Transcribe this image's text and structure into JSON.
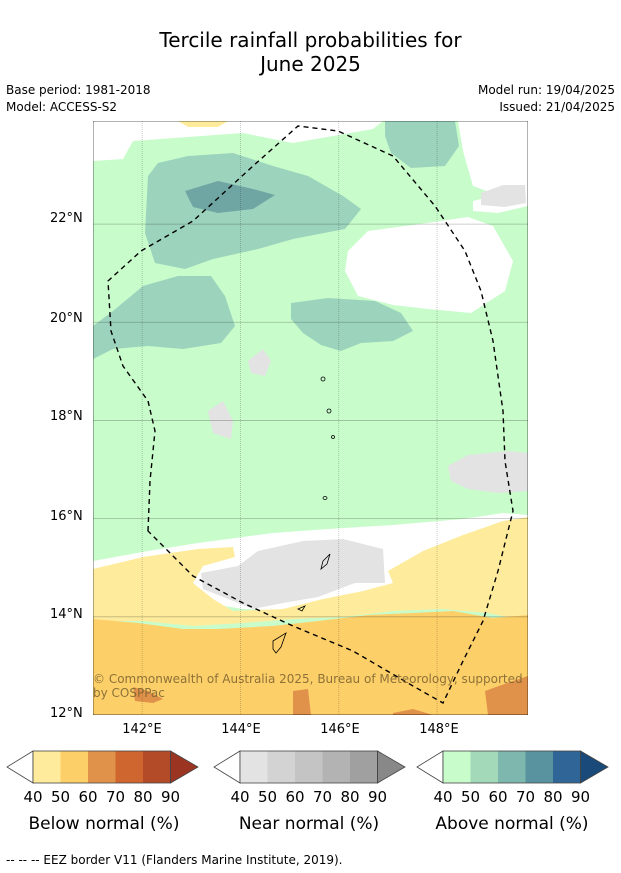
{
  "header": {
    "title_line1": "Tercile rainfall probabilities for",
    "title_line2": "June 2025",
    "base_period": "Base period: 1981-2018",
    "model": "Model: ACCESS-S2",
    "model_run": "Model run: 19/04/2025",
    "issued": "Issued: 21/04/2025"
  },
  "map": {
    "lat_labels": [
      "22°N",
      "20°N",
      "18°N",
      "16°N",
      "14°N",
      "12°N"
    ],
    "lon_labels": [
      "142°E",
      "144°E",
      "146°E",
      "148°E"
    ],
    "lat_range": [
      12,
      24.1
    ],
    "lon_range": [
      141,
      149.85
    ],
    "copyright_line1": "© Commonwealth of Australia 2025, Bureau of Meteorology, supported",
    "copyright_line2": "by COSPPac",
    "colors": {
      "background": "#ffffff",
      "above_40": "#c8fccb",
      "above_50": "#9cd3bc",
      "above_60": "#6fa5a3",
      "near_40": "#e3e3e3",
      "below_40": "#feec9c",
      "below_50": "#fdcf69",
      "below_60": "#e0924a",
      "eez_border": "#000000"
    }
  },
  "legends": [
    {
      "title": "Below normal (%)",
      "ticks": [
        "40",
        "50",
        "60",
        "70",
        "80",
        "90"
      ],
      "colors": [
        "#feec9c",
        "#fdcf69",
        "#e0924a",
        "#d0662f",
        "#b34b28",
        "#9b3420"
      ]
    },
    {
      "title": "Near normal (%)",
      "ticks": [
        "40",
        "50",
        "60",
        "70",
        "80",
        "90"
      ],
      "colors": [
        "#e3e3e3",
        "#d3d3d3",
        "#c4c4c4",
        "#b3b3b3",
        "#a0a0a0",
        "#888888"
      ]
    },
    {
      "title": "Above normal (%)",
      "ticks": [
        "40",
        "50",
        "60",
        "70",
        "80",
        "90"
      ],
      "colors": [
        "#c8fccb",
        "#a3d9b8",
        "#7db7ad",
        "#5a93a0",
        "#306598",
        "#1a4a7a"
      ]
    }
  ],
  "footnote": "--  --  -- EEZ border V11 (Flanders Marine Institute, 2019)."
}
